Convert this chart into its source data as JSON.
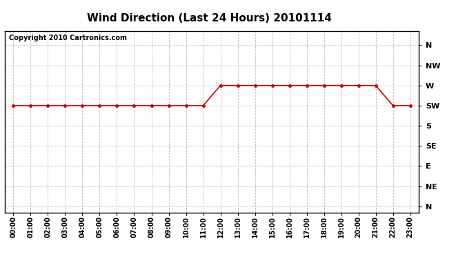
{
  "title": "Wind Direction (Last 24 Hours) 20101114",
  "copyright_text": "Copyright 2010 Cartronics.com",
  "x_labels": [
    "00:00",
    "01:00",
    "02:00",
    "03:00",
    "04:00",
    "05:00",
    "06:00",
    "07:00",
    "08:00",
    "09:00",
    "10:00",
    "11:00",
    "12:00",
    "13:00",
    "14:00",
    "15:00",
    "16:00",
    "17:00",
    "18:00",
    "19:00",
    "20:00",
    "21:00",
    "22:00",
    "23:00"
  ],
  "y_labels": [
    "N",
    "NW",
    "W",
    "SW",
    "S",
    "SE",
    "E",
    "NE",
    "N"
  ],
  "y_values": [
    8,
    7,
    6,
    5,
    4,
    3,
    2,
    1,
    0
  ],
  "wind_data": [
    5,
    5,
    5,
    5,
    5,
    5,
    5,
    5,
    5,
    5,
    5,
    5,
    6,
    6,
    6,
    6,
    6,
    6,
    6,
    6,
    6,
    6,
    5,
    5
  ],
  "line_color": "#cc0000",
  "marker": "o",
  "marker_size": 3,
  "background_color": "#ffffff",
  "grid_color": "#bbbbbb",
  "title_fontsize": 11,
  "tick_fontsize": 7,
  "copyright_fontsize": 7,
  "ylabel_fontsize": 8
}
